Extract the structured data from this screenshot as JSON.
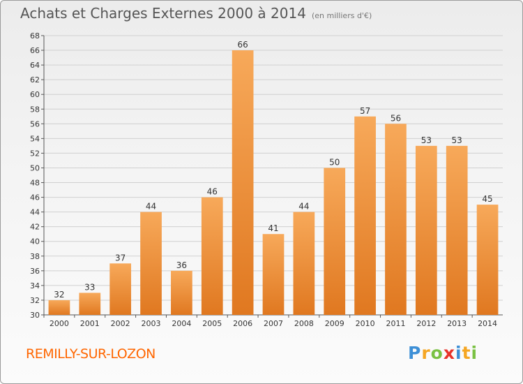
{
  "header": {
    "title": "Achats et Charges Externes 2000 à 2014",
    "unit": "(en milliers d'€)"
  },
  "footer": {
    "town": "REMILLY-SUR-LOZON",
    "logo_letters": [
      "P",
      "r",
      "o",
      "x",
      "i",
      "t",
      "i"
    ],
    "logo_colors": [
      "#3d8fd6",
      "#f5a623",
      "#7ac143",
      "#e8332a",
      "#3d8fd6",
      "#f5a623",
      "#7ac143"
    ]
  },
  "colors": {
    "bar_light": "#f7a95a",
    "bar_dark": "#e07820",
    "grid": "#d0d0d0",
    "axis": "#555555",
    "label": "#333333"
  },
  "chart_data": {
    "type": "bar",
    "title": "Achats et Charges Externes 2000 à 2014",
    "subtitle": "(en milliers d'€)",
    "categories": [
      "2000",
      "2001",
      "2002",
      "2003",
      "2004",
      "2005",
      "2006",
      "2007",
      "2008",
      "2009",
      "2010",
      "2011",
      "2012",
      "2013",
      "2014"
    ],
    "values": [
      32,
      33,
      37,
      44,
      36,
      46,
      66,
      41,
      44,
      50,
      57,
      56,
      53,
      53,
      45
    ],
    "ylim": [
      30,
      68
    ],
    "yticks": [
      30,
      32,
      34,
      36,
      38,
      40,
      42,
      44,
      46,
      48,
      50,
      52,
      54,
      56,
      58,
      60,
      62,
      64,
      66,
      68
    ],
    "grid": true,
    "legend": "none"
  }
}
